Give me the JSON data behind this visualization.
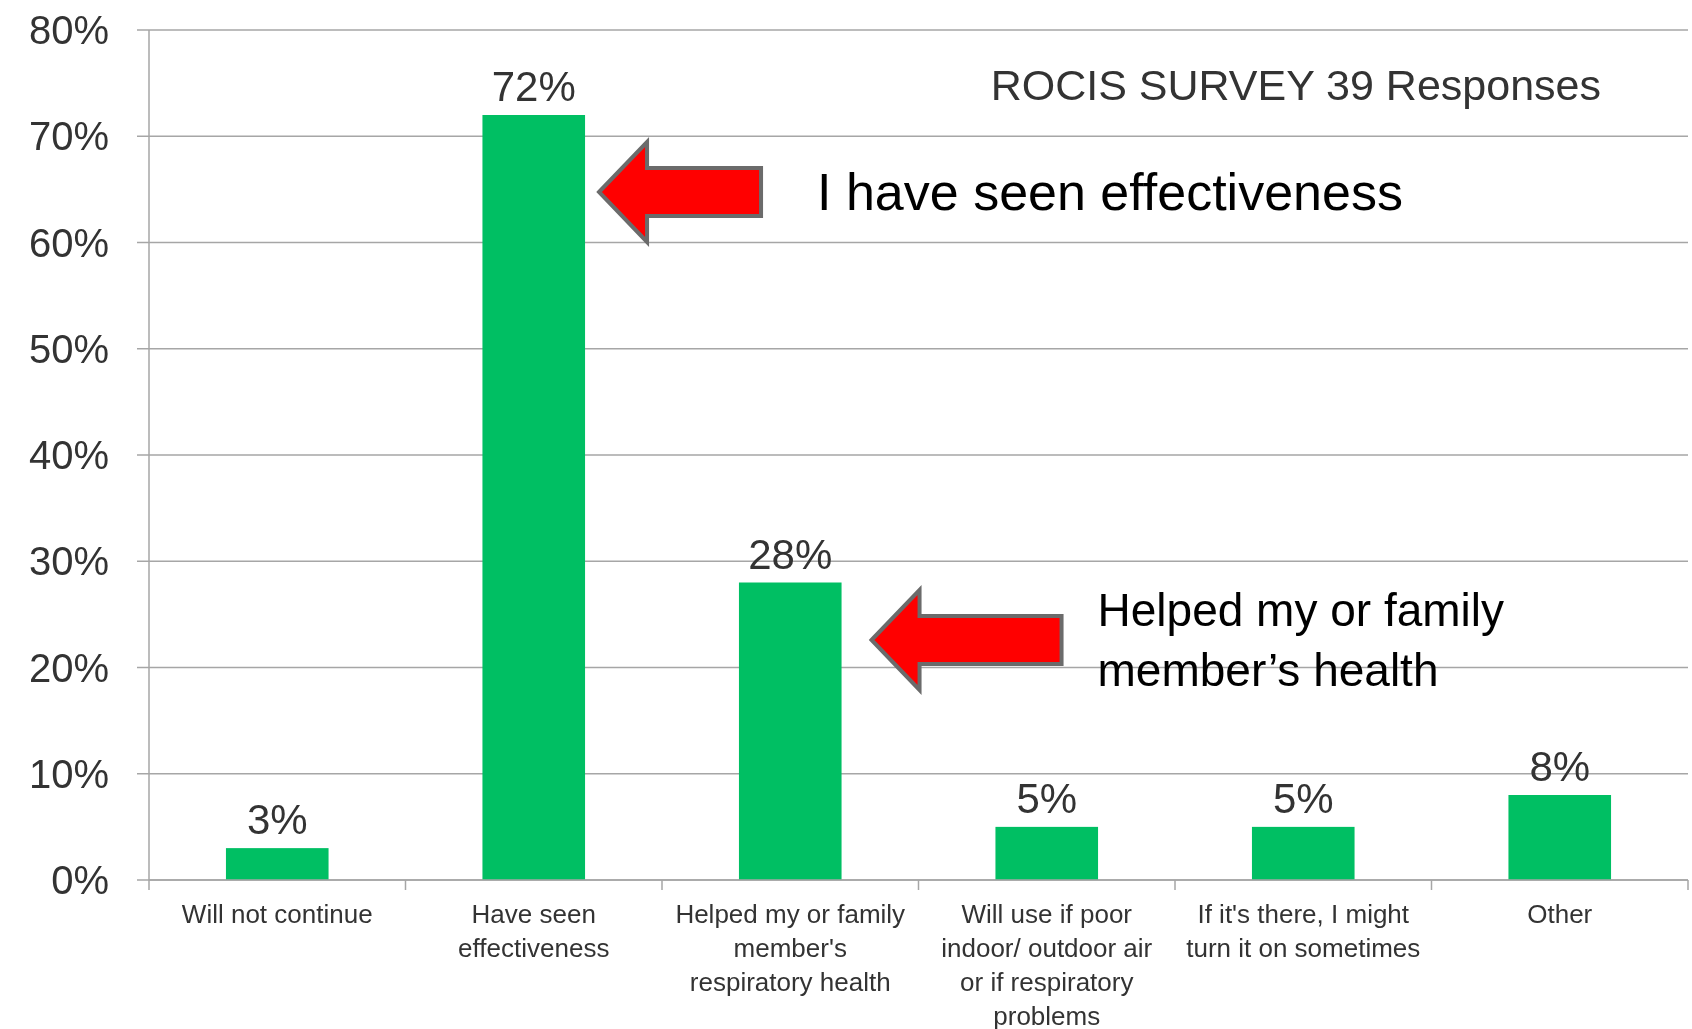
{
  "chart_data": {
    "type": "bar",
    "title": "ROCIS SURVEY 39 Responses",
    "categories": [
      "Will not continue",
      "Have seen effectiveness",
      "Helped my or family member's respiratory health",
      "Will  use if poor indoor/ outdoor air or if respiratory problems",
      "If it's there, I might turn it on sometimes",
      "Other"
    ],
    "values": [
      3,
      72,
      28,
      5,
      5,
      8
    ],
    "color": "#00bf63",
    "value_labels": [
      "3%",
      "72%",
      "28%",
      "5%",
      "5%",
      "8%"
    ],
    "ylim": [
      0,
      80
    ],
    "yticks": [
      {
        "value": 0,
        "label": "0%"
      },
      {
        "value": 10,
        "label": "10%"
      },
      {
        "value": 20,
        "label": "20%"
      },
      {
        "value": 30,
        "label": "30%"
      },
      {
        "value": 40,
        "label": "40%"
      },
      {
        "value": 50,
        "label": "50%"
      },
      {
        "value": 60,
        "label": "60%"
      },
      {
        "value": 70,
        "label": "70%"
      },
      {
        "value": 80,
        "label": "80%"
      }
    ],
    "grid": "y",
    "annotations": [
      "I have seen effectiveness",
      "Helped my or family member’s health"
    ]
  }
}
